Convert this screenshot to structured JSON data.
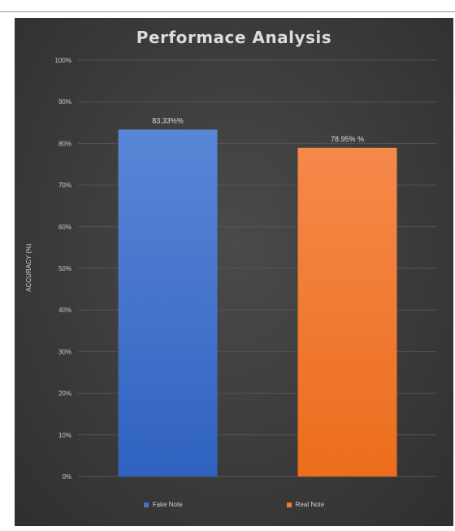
{
  "chart_data": {
    "type": "bar",
    "title": "Performace Analysis",
    "ylabel": "ACCURACY (%)",
    "xlabel": "",
    "categories": [
      "Fake Note",
      "Real Note"
    ],
    "values": [
      83.33,
      78.95
    ],
    "data_labels": [
      "83.33%%",
      "78.95% %"
    ],
    "ylim": [
      0,
      100
    ],
    "yticks": [
      0,
      10,
      20,
      30,
      40,
      50,
      60,
      70,
      80,
      90,
      100
    ],
    "ytick_labels": [
      "0%",
      "10%",
      "20%",
      "30%",
      "40%",
      "50%",
      "60%",
      "70%",
      "80%",
      "90%",
      "100%"
    ],
    "colors": [
      "#4472c4",
      "#ed7d31"
    ],
    "grid": true,
    "legend": "bottom",
    "legend_entries": [
      "Fake Note",
      "Real Note"
    ]
  }
}
